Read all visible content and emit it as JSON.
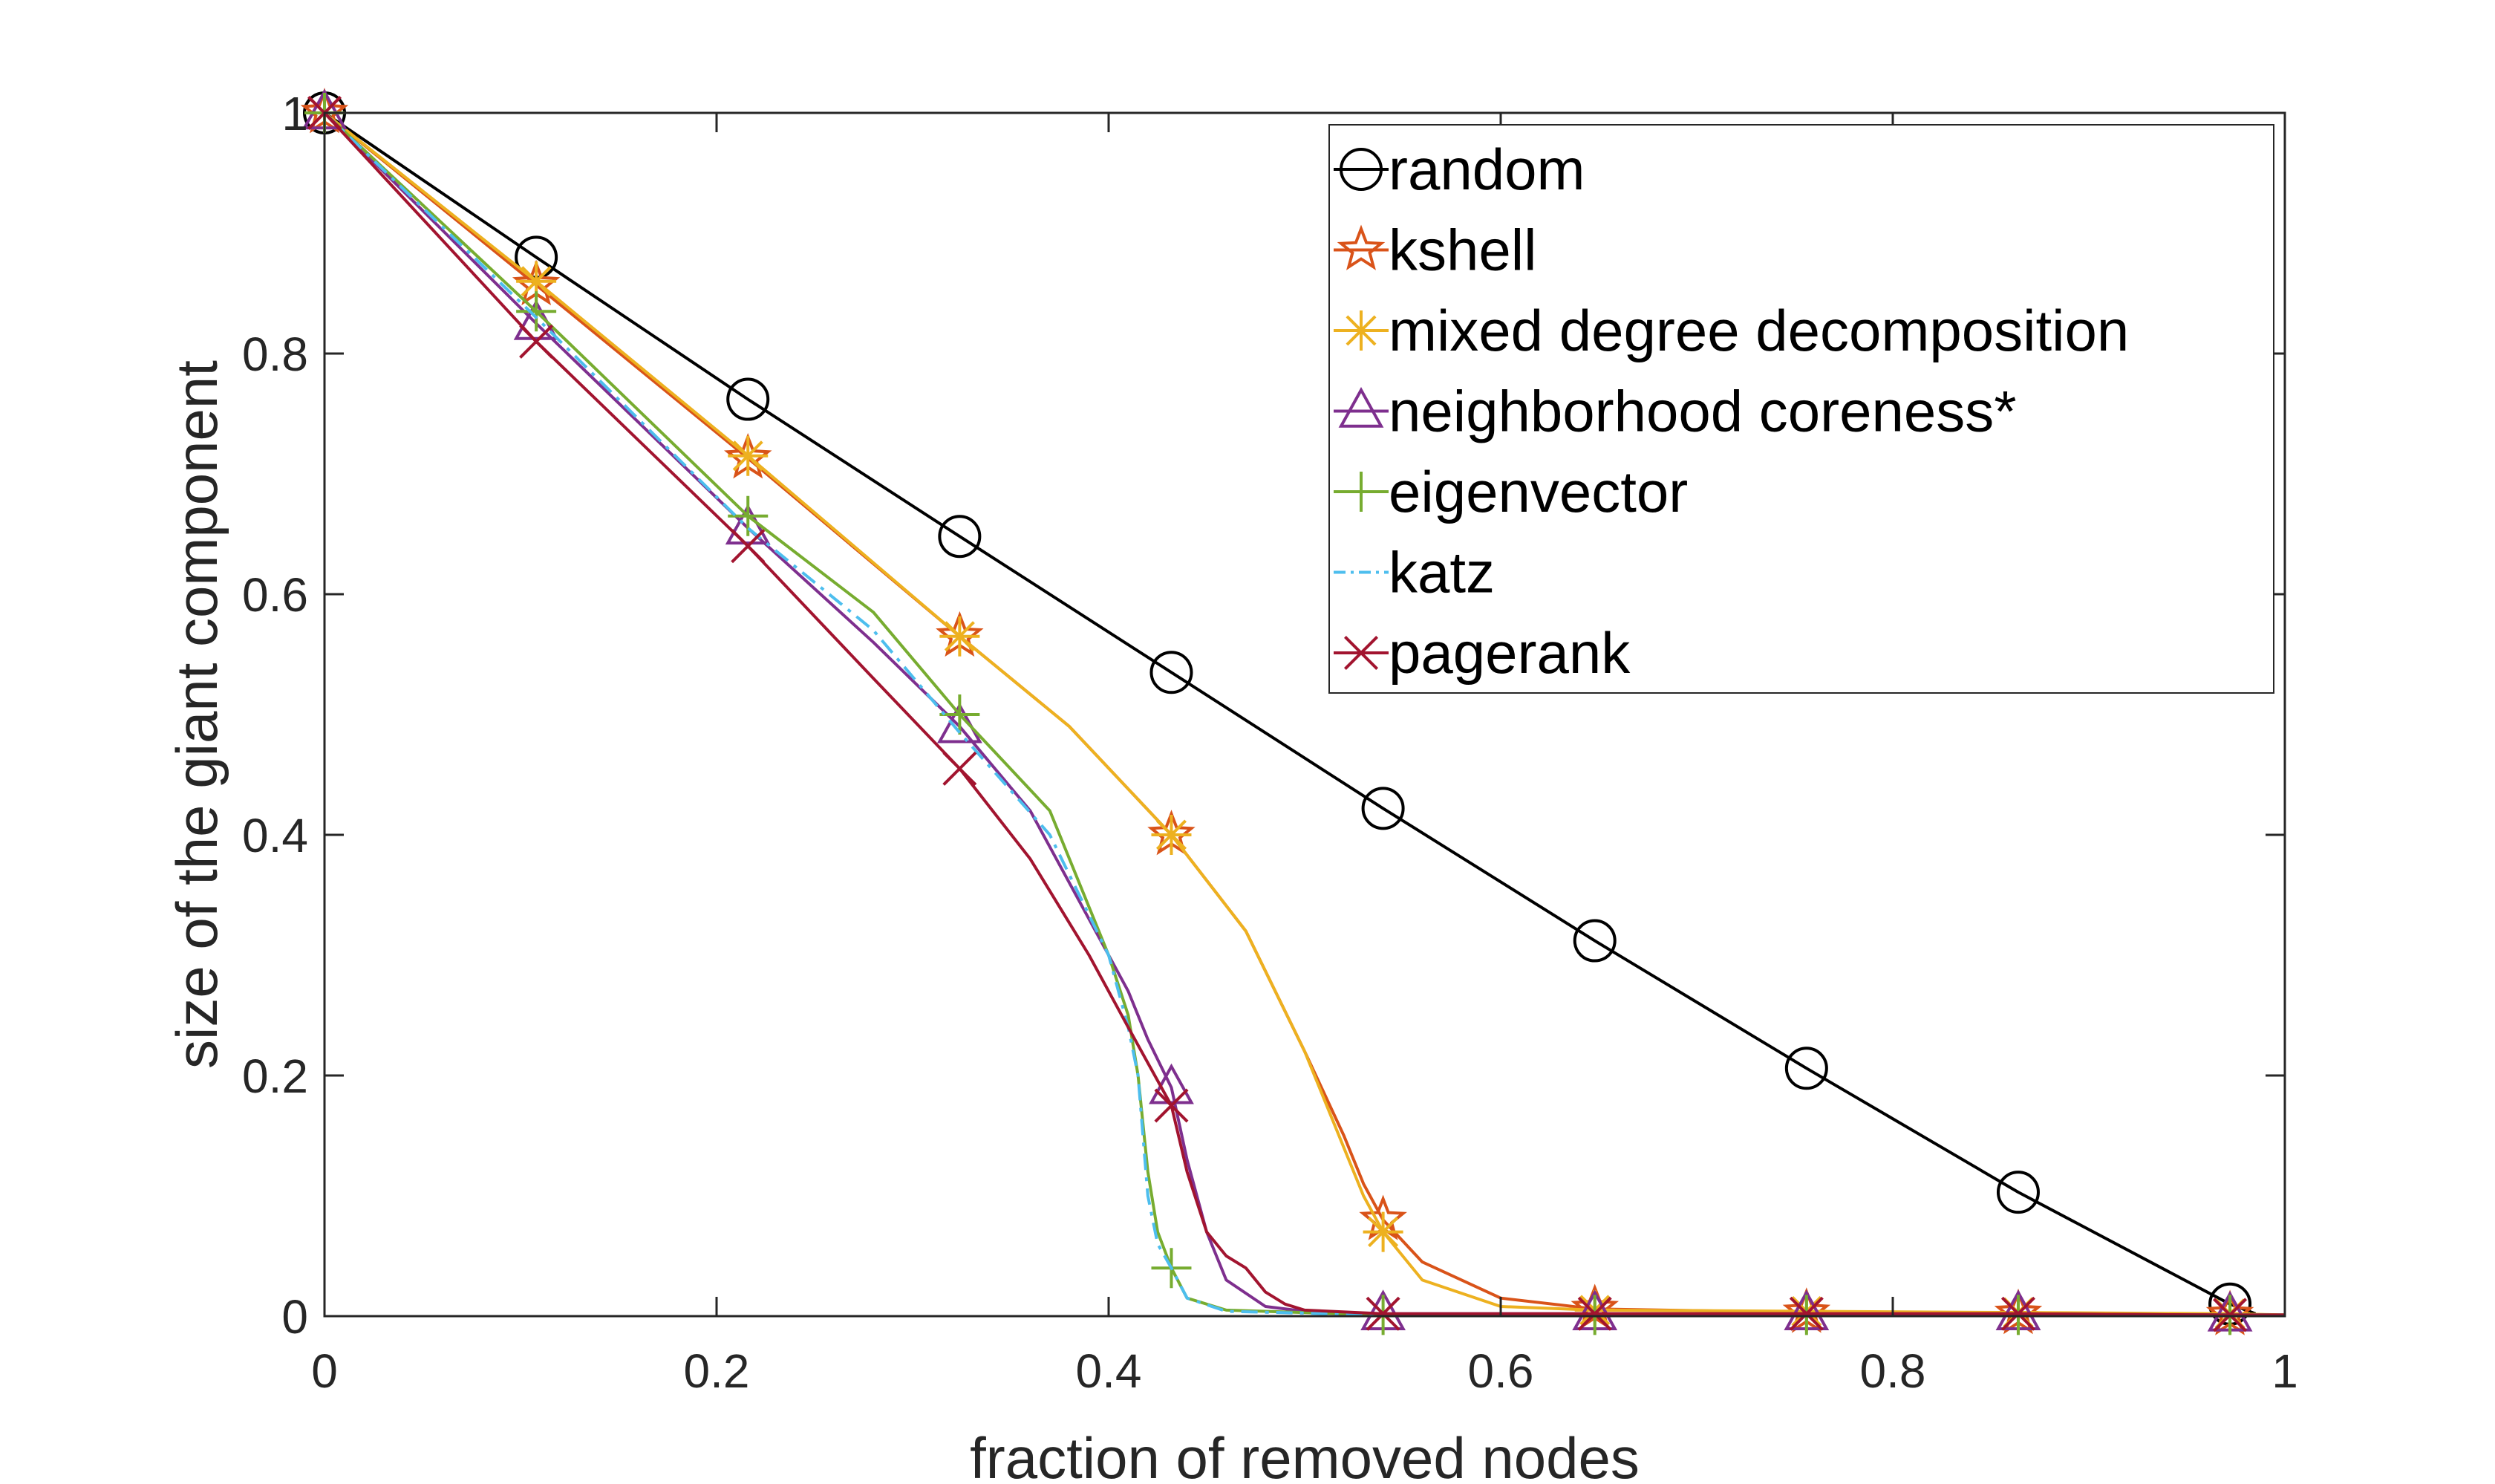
{
  "chart_data": {
    "type": "line",
    "title": "",
    "xlabel": "fraction of removed nodes",
    "ylabel": "size of the giant component",
    "xlim": [
      0,
      1
    ],
    "ylim": [
      0,
      1
    ],
    "xticks": [
      0,
      0.2,
      0.4,
      0.6,
      0.8,
      1
    ],
    "xtick_labels": [
      "0",
      "0.2",
      "0.4",
      "0.6",
      "0.8",
      "1"
    ],
    "yticks": [
      0,
      0.2,
      0.4,
      0.6,
      0.8,
      1
    ],
    "ytick_labels": [
      "0",
      "0.2",
      "0.4",
      "0.6",
      "0.8",
      "1"
    ],
    "grid": false,
    "box": true,
    "legend_position": "top-right",
    "marker_x": [
      0,
      0.108,
      0.216,
      0.324,
      0.432,
      0.54,
      0.648,
      0.756,
      0.864,
      0.972
    ],
    "series": [
      {
        "name": "random",
        "color": "#000000",
        "marker": "circle",
        "dash": "solid",
        "x": [
          0,
          0.108,
          0.216,
          0.324,
          0.432,
          0.54,
          0.648,
          0.756,
          0.864,
          0.972,
          0.985
        ],
        "y": [
          1,
          0.88,
          0.762,
          0.648,
          0.535,
          0.422,
          0.312,
          0.206,
          0.103,
          0.01,
          0.002
        ]
      },
      {
        "name": "kshell",
        "color": "#D95319",
        "marker": "pentagram",
        "dash": "solid",
        "x": [
          0,
          0.108,
          0.216,
          0.324,
          0.38,
          0.432,
          0.47,
          0.5,
          0.52,
          0.53,
          0.54,
          0.56,
          0.6,
          0.648,
          0.756,
          0.864,
          0.972,
          1
        ],
        "y": [
          1,
          0.857,
          0.713,
          0.565,
          0.49,
          0.4,
          0.32,
          0.22,
          0.15,
          0.11,
          0.08,
          0.045,
          0.015,
          0.006,
          0.003,
          0.002,
          0.001,
          0.001
        ]
      },
      {
        "name": "mixed degree decomposition",
        "color": "#EDB120",
        "marker": "asterisk",
        "dash": "solid",
        "x": [
          0,
          0.108,
          0.216,
          0.324,
          0.38,
          0.432,
          0.47,
          0.5,
          0.52,
          0.53,
          0.54,
          0.56,
          0.6,
          0.648,
          0.756,
          0.864,
          0.972,
          1
        ],
        "y": [
          1,
          0.86,
          0.715,
          0.565,
          0.49,
          0.4,
          0.32,
          0.22,
          0.14,
          0.1,
          0.07,
          0.03,
          0.008,
          0.005,
          0.004,
          0.003,
          0.002,
          0.001
        ]
      },
      {
        "name": "neighborhood coreness*",
        "color": "#7E2F8E",
        "marker": "triangle",
        "dash": "solid",
        "x": [
          0,
          0.108,
          0.216,
          0.28,
          0.324,
          0.36,
          0.39,
          0.41,
          0.42,
          0.432,
          0.44,
          0.45,
          0.46,
          0.48,
          0.5,
          0.54,
          0.648,
          0.756,
          0.864,
          0.972,
          1
        ],
        "y": [
          1,
          0.825,
          0.655,
          0.56,
          0.49,
          0.42,
          0.33,
          0.27,
          0.23,
          0.19,
          0.13,
          0.07,
          0.03,
          0.008,
          0.004,
          0.002,
          0.002,
          0.002,
          0.002,
          0.001,
          0.001
        ]
      },
      {
        "name": "eigenvector",
        "color": "#77AC30",
        "marker": "plus",
        "dash": "solid",
        "x": [
          0,
          0.108,
          0.216,
          0.28,
          0.324,
          0.37,
          0.4,
          0.41,
          0.415,
          0.42,
          0.425,
          0.432,
          0.44,
          0.46,
          0.54,
          0.648,
          0.756,
          0.864,
          0.972,
          1
        ],
        "y": [
          1,
          0.835,
          0.665,
          0.585,
          0.5,
          0.42,
          0.3,
          0.25,
          0.2,
          0.12,
          0.07,
          0.04,
          0.015,
          0.005,
          0.001,
          0.001,
          0.001,
          0.001,
          0.001,
          0.001
        ]
      },
      {
        "name": "katz",
        "color": "#4DBEEE",
        "marker": "none",
        "dash": "dashdot",
        "x": [
          0,
          0.108,
          0.216,
          0.28,
          0.324,
          0.37,
          0.4,
          0.41,
          0.415,
          0.42,
          0.425,
          0.432,
          0.44,
          0.46,
          0.54,
          1
        ],
        "y": [
          1,
          0.83,
          0.655,
          0.57,
          0.485,
          0.4,
          0.3,
          0.24,
          0.2,
          0.1,
          0.06,
          0.04,
          0.015,
          0.004,
          0.001,
          0.001
        ]
      },
      {
        "name": "pagerank",
        "color": "#A2142F",
        "marker": "x",
        "dash": "solid",
        "x": [
          0,
          0.108,
          0.216,
          0.28,
          0.324,
          0.36,
          0.39,
          0.41,
          0.432,
          0.44,
          0.45,
          0.46,
          0.47,
          0.48,
          0.49,
          0.5,
          0.54,
          0.648,
          0.756,
          0.864,
          0.972,
          1
        ],
        "y": [
          1,
          0.81,
          0.64,
          0.53,
          0.455,
          0.38,
          0.3,
          0.24,
          0.175,
          0.12,
          0.07,
          0.05,
          0.04,
          0.02,
          0.01,
          0.005,
          0.002,
          0.002,
          0.002,
          0.002,
          0.001,
          0.001
        ]
      }
    ]
  }
}
